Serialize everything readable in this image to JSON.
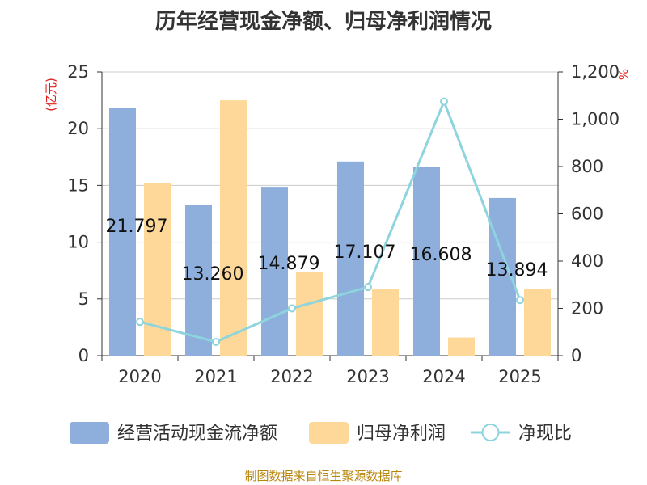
{
  "chart_data": {
    "type": "bar",
    "title": "历年经营现金净额、归母净利润情况",
    "source": "制图数据来自恒生聚源数据库",
    "categories": [
      "2020",
      "2021",
      "2022",
      "2023",
      "2024",
      "2025"
    ],
    "y_left": {
      "label": "(亿元)",
      "ylim": [
        0,
        25
      ],
      "ticks": [
        "0",
        "5",
        "10",
        "15",
        "20",
        "25"
      ]
    },
    "y_right": {
      "label": "%",
      "ylim": [
        0,
        1200
      ],
      "ticks": [
        "0",
        "200",
        "400",
        "600",
        "800",
        "1,000",
        "1,200"
      ]
    },
    "grid": true,
    "legend_position": "bottom",
    "series": [
      {
        "name": "经营活动现金流净额",
        "type": "bar",
        "axis": "left",
        "color": "#8eaedc",
        "values": [
          21.797,
          13.26,
          14.879,
          17.107,
          16.608,
          13.894
        ],
        "labels": [
          "21.797",
          "13.260",
          "14.879",
          "17.107",
          "16.608",
          "13.894"
        ]
      },
      {
        "name": "归母净利润",
        "type": "bar",
        "axis": "left",
        "color": "#fed898",
        "values": [
          15.2,
          22.5,
          7.4,
          5.9,
          1.6,
          5.9
        ]
      },
      {
        "name": "净现比",
        "type": "line",
        "axis": "right",
        "color": "#8dd4de",
        "values": [
          143,
          58,
          200,
          290,
          1075,
          235
        ]
      }
    ]
  }
}
